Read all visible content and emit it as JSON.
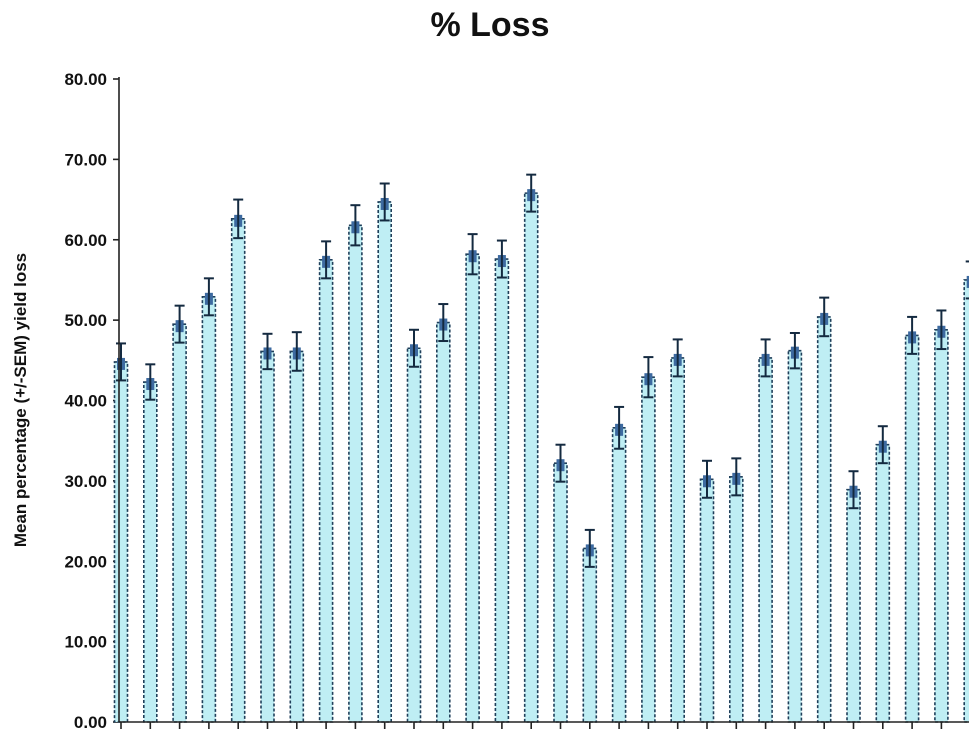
{
  "chart_data": {
    "type": "bar",
    "title": "% Loss",
    "xlabel": "",
    "ylabel": "Mean percentage (+/-SEM) yield loss",
    "ylim": [
      0,
      80
    ],
    "yticks": [
      "0.00",
      "10.00",
      "20.00",
      "30.00",
      "40.00",
      "50.00",
      "60.00",
      "70.00",
      "80.00"
    ],
    "series": [
      {
        "values": [
          44.8,
          42.3,
          49.5,
          52.9,
          62.6,
          46.1,
          46.1,
          57.5,
          61.8,
          64.7,
          46.5,
          49.7,
          58.2,
          57.6,
          65.8,
          32.2,
          21.6,
          36.6,
          42.9,
          45.3,
          30.2,
          30.5,
          45.3,
          46.2,
          50.4,
          28.9,
          34.5,
          48.1,
          48.8,
          55.0
        ],
        "errors": [
          2.3,
          2.2,
          2.3,
          2.3,
          2.4,
          2.2,
          2.4,
          2.3,
          2.5,
          2.3,
          2.3,
          2.3,
          2.5,
          2.3,
          2.3,
          2.3,
          2.3,
          2.6,
          2.5,
          2.3,
          2.3,
          2.3,
          2.3,
          2.2,
          2.4,
          2.3,
          2.3,
          2.3,
          2.4,
          2.3
        ]
      }
    ],
    "colors": {
      "bar_fill": "#bfeef4",
      "bar_edge": "#1f3f5a",
      "bar_cap": "#3d6aa0"
    },
    "grid": false,
    "legend": "none"
  }
}
